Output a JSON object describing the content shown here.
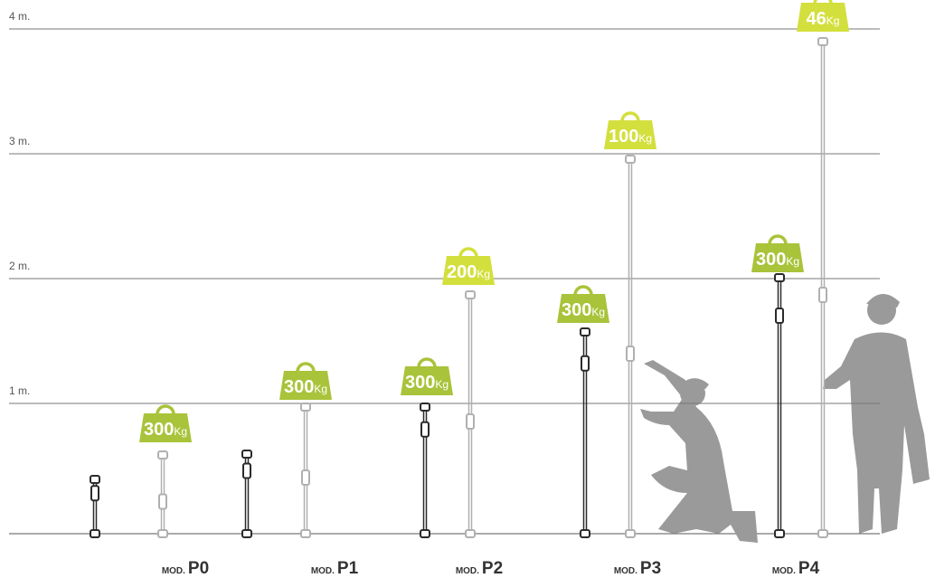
{
  "scale": {
    "labels": [
      "1 m.",
      "2 m.",
      "3 m.",
      "4 m."
    ]
  },
  "models": [
    {
      "prefix": "MOD.",
      "name": "P0",
      "loads": [
        {
          "value": "300",
          "unit": "Kg"
        }
      ]
    },
    {
      "prefix": "MOD.",
      "name": "P1",
      "loads": [
        {
          "value": "300",
          "unit": "Kg"
        }
      ]
    },
    {
      "prefix": "MOD.",
      "name": "P2",
      "loads": [
        {
          "value": "300",
          "unit": "Kg"
        },
        {
          "value": "200",
          "unit": "Kg"
        }
      ]
    },
    {
      "prefix": "MOD.",
      "name": "P3",
      "loads": [
        {
          "value": "300",
          "unit": "Kg"
        },
        {
          "value": "100",
          "unit": "Kg"
        }
      ]
    },
    {
      "prefix": "MOD.",
      "name": "P4",
      "loads": [
        {
          "value": "300",
          "unit": "Kg"
        },
        {
          "value": "46",
          "unit": "Kg"
        }
      ]
    }
  ]
}
